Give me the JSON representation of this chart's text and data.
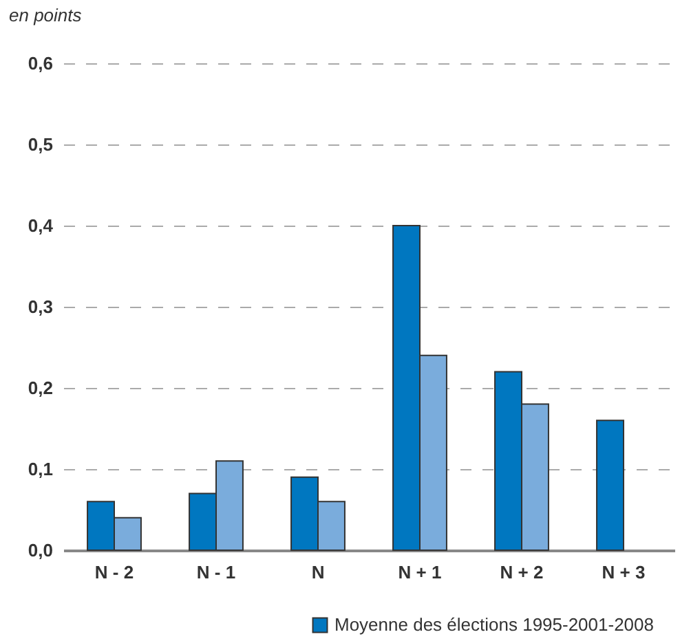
{
  "chart_data": {
    "type": "bar",
    "ylabel": "en points",
    "categories": [
      "N - 2",
      "N - 1",
      "N",
      "N + 1",
      "N + 2",
      "N + 3"
    ],
    "series": [
      {
        "name": "Moyenne des élections 1995-2001-2008",
        "color": "#0077c0",
        "values": [
          0.06,
          0.07,
          0.09,
          0.4,
          0.22,
          0.16
        ]
      },
      {
        "color": "#7aacdc",
        "values": [
          0.04,
          0.11,
          0.06,
          0.24,
          0.18,
          null
        ]
      }
    ],
    "ylim": [
      0,
      0.6
    ],
    "yticks": [
      {
        "value": 0,
        "label": "0,0"
      },
      {
        "value": 0.1,
        "label": "0,1"
      },
      {
        "value": 0.2,
        "label": "0,2"
      },
      {
        "value": 0.3,
        "label": "0,3"
      },
      {
        "value": 0.4,
        "label": "0,4"
      },
      {
        "value": 0.5,
        "label": "0,5"
      },
      {
        "value": 0.6,
        "label": "0,6"
      }
    ],
    "grid": "y",
    "legend": "bottom right"
  }
}
